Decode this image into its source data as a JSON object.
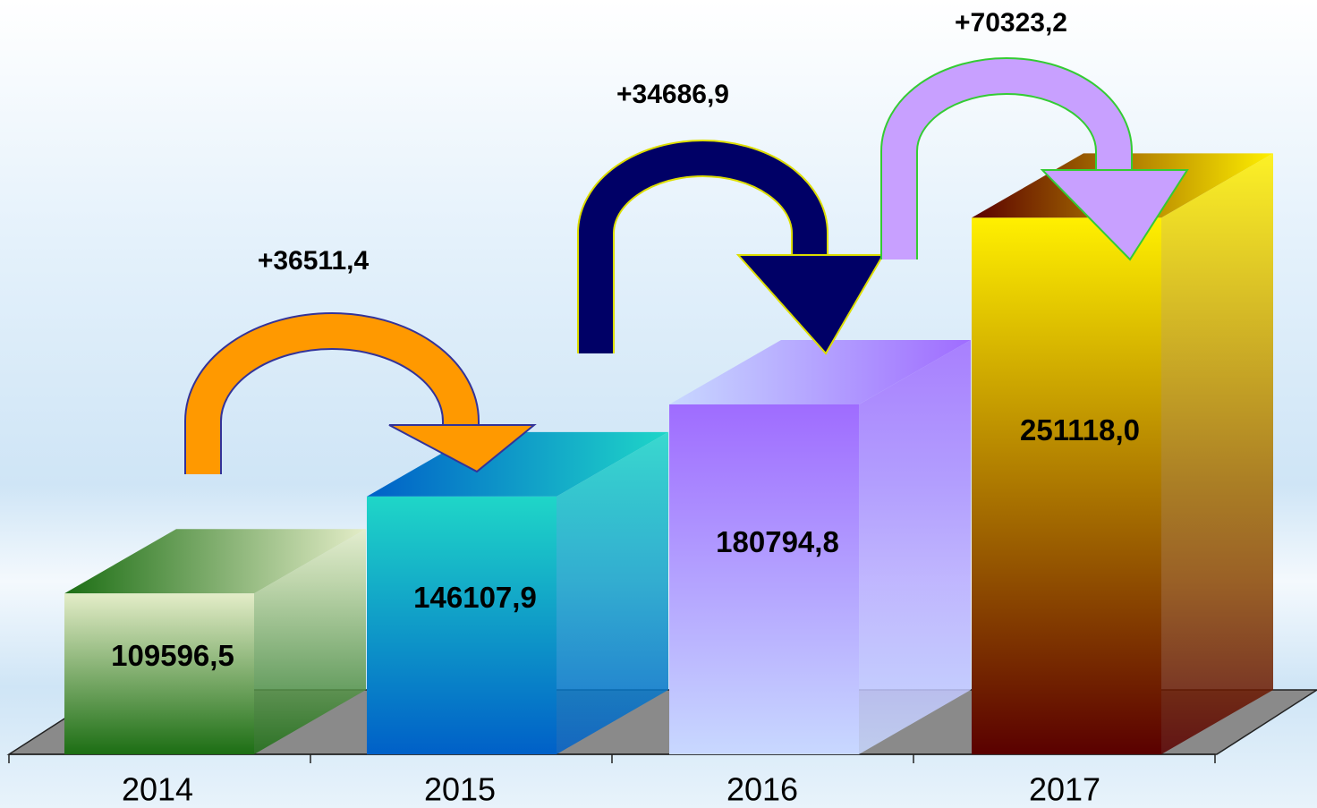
{
  "chart_data": {
    "type": "bar3d",
    "categories": [
      "2014",
      "2015",
      "2016",
      "2017"
    ],
    "values": [
      109596.5,
      146107.9,
      180794.8,
      251118.0
    ],
    "value_labels": [
      "109596,5",
      "146107,9",
      "180794,8",
      "251118,0"
    ],
    "colors": [
      [
        "#e4edc8",
        "#1c6e14"
      ],
      [
        "#1fd6c8",
        "#0060c8"
      ],
      [
        "#9f6cff",
        "#c8d8ff"
      ],
      [
        "#fff000",
        "#5a0000"
      ]
    ],
    "annotations": [
      "+36511,4",
      "+34686,9",
      "+70323,2"
    ],
    "annotation_colors": [
      "#ff9900",
      "#000066",
      "#c8a0ff"
    ],
    "ylim": [
      49000,
      260000
    ]
  }
}
